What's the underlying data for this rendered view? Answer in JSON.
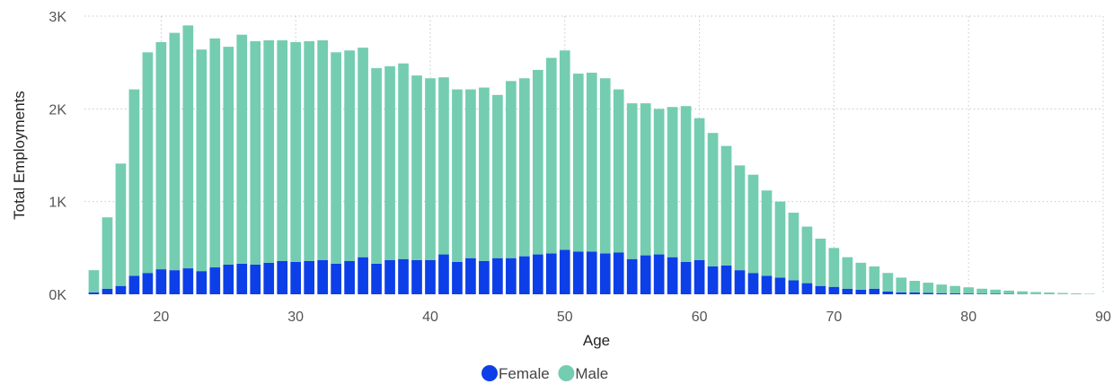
{
  "chart_data": {
    "type": "bar",
    "stacked": true,
    "title": "",
    "xlabel": "Age",
    "ylabel": "Total Employments",
    "xlim": [
      14.3,
      90
    ],
    "ylim": [
      0,
      3000
    ],
    "x_ticks": [
      20,
      30,
      40,
      50,
      60,
      70,
      80,
      90
    ],
    "y_ticks": [
      0,
      1000,
      2000,
      3000
    ],
    "y_tick_labels": [
      "0K",
      "1K",
      "2K",
      "3K"
    ],
    "grid": true,
    "legend_position": "bottom-center",
    "x": [
      15,
      16,
      17,
      18,
      19,
      20,
      21,
      22,
      23,
      24,
      25,
      26,
      27,
      28,
      29,
      30,
      31,
      32,
      33,
      34,
      35,
      36,
      37,
      38,
      39,
      40,
      41,
      42,
      43,
      44,
      45,
      46,
      47,
      48,
      49,
      50,
      51,
      52,
      53,
      54,
      55,
      56,
      57,
      58,
      59,
      60,
      61,
      62,
      63,
      64,
      65,
      66,
      67,
      68,
      69,
      70,
      71,
      72,
      73,
      74,
      75,
      76,
      77,
      78,
      79,
      80,
      81,
      82,
      83,
      84,
      85,
      86,
      87,
      88,
      89
    ],
    "series": [
      {
        "name": "Female",
        "color": "#0d3fe8",
        "values": [
          20,
          60,
          90,
          200,
          230,
          270,
          260,
          280,
          250,
          290,
          320,
          330,
          320,
          340,
          360,
          350,
          360,
          370,
          330,
          360,
          400,
          330,
          370,
          380,
          370,
          370,
          430,
          350,
          390,
          360,
          390,
          390,
          410,
          430,
          440,
          480,
          460,
          460,
          440,
          450,
          380,
          420,
          430,
          400,
          350,
          370,
          300,
          310,
          260,
          230,
          200,
          180,
          150,
          120,
          90,
          80,
          60,
          50,
          60,
          30,
          20,
          20,
          15,
          12,
          10,
          8,
          6,
          5,
          4,
          3,
          2,
          2,
          1,
          1,
          0
        ]
      },
      {
        "name": "Male",
        "color": "#74cdb0",
        "values": [
          240,
          770,
          1320,
          2010,
          2380,
          2450,
          2560,
          2620,
          2390,
          2470,
          2350,
          2470,
          2410,
          2400,
          2380,
          2370,
          2370,
          2370,
          2280,
          2270,
          2260,
          2110,
          2090,
          2110,
          1990,
          1960,
          1910,
          1860,
          1820,
          1870,
          1760,
          1910,
          1920,
          1990,
          2110,
          2150,
          1920,
          1930,
          1890,
          1760,
          1680,
          1640,
          1570,
          1620,
          1680,
          1530,
          1440,
          1290,
          1130,
          1060,
          920,
          820,
          730,
          610,
          510,
          420,
          340,
          290,
          240,
          200,
          160,
          125,
          110,
          93,
          80,
          67,
          54,
          45,
          36,
          29,
          22,
          17,
          13,
          9,
          5
        ]
      }
    ]
  }
}
